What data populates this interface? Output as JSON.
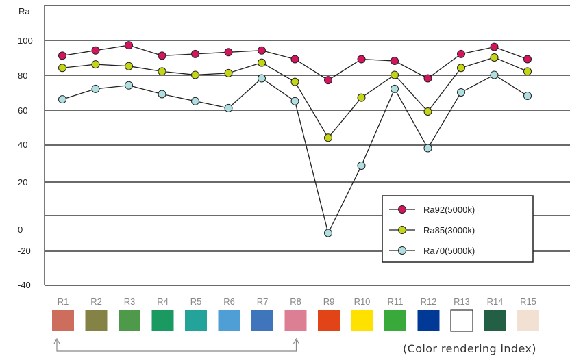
{
  "chart_data": {
    "type": "line",
    "y_axis_title": "Ra",
    "y_ticks": [
      "100",
      "80",
      "60",
      "40",
      "20",
      "0",
      "-20",
      "-40"
    ],
    "categories": [
      "R1",
      "R2",
      "R3",
      "R4",
      "R5",
      "R6",
      "R7",
      "R8",
      "R9",
      "R10",
      "R11",
      "R12",
      "R13",
      "R14",
      "R15"
    ],
    "swatch_colors": [
      "#cc6d5e",
      "#848245",
      "#4e9a4a",
      "#1a9961",
      "#23a39a",
      "#4f9fd6",
      "#3f75bb",
      "#dc7f94",
      "#e04417",
      "#ffe100",
      "#3aa93c",
      "#003a96",
      "#ffffff",
      "#235f45",
      "#f2e0d2"
    ],
    "series": [
      {
        "name": "Ra92(5000k)",
        "color": "#d3155e",
        "values": [
          92,
          95,
          98,
          92,
          93,
          94,
          95,
          90,
          78,
          90,
          89,
          79,
          93,
          97,
          90
        ]
      },
      {
        "name": "Ra85(3000k)",
        "color": "#c4d417",
        "values": [
          85,
          87,
          86,
          83,
          81,
          82,
          88,
          77,
          45,
          68,
          81,
          60,
          85,
          91,
          83
        ]
      },
      {
        "name": "Ra70(5000k)",
        "color": "#b0dfe2",
        "values": [
          67,
          73,
          75,
          70,
          66,
          62,
          79,
          66,
          -10,
          29,
          73,
          39,
          71,
          81,
          69
        ]
      }
    ],
    "xlabel": "(Color rendering index)",
    "grid": true,
    "legend_position": "lower-right",
    "bracket": {
      "from": "R1",
      "to": "R8"
    }
  }
}
